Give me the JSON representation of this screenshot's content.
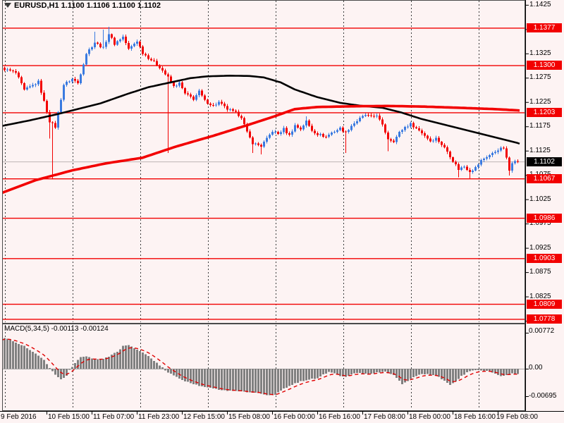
{
  "header": {
    "symbol_period": "EURUSD,H1",
    "ohlc_text": "1.1100 1.1106 1.1100 1.1102"
  },
  "colors": {
    "background": "#FDF3F3",
    "bull_candle": "#3A7AE0",
    "bear_candle": "#F20000",
    "ma_black": "#000000",
    "ma_red": "#F20000",
    "level_line": "#F20000",
    "bid_line": "#C4BCBC",
    "grid": "#3C3C3C",
    "macd_bar": "#808080",
    "macd_signal": "#E00000",
    "label_red_bg": "#F20000",
    "label_black_bg": "#000000",
    "frame": "#4a4a4a",
    "axis_line": "#000000"
  },
  "price_axis": {
    "tick_labels": [
      1.1425,
      1.1375,
      1.1325,
      1.1275,
      1.1225,
      1.1175,
      1.1125,
      1.1075,
      1.1025,
      1.0975,
      1.0925,
      1.0875,
      1.0825,
      1.0775
    ],
    "level_labels": [
      1.1377,
      1.13,
      1.1203,
      1.1067,
      1.0986,
      1.0903,
      1.0809,
      1.0778
    ],
    "current_price_label": 1.1102
  },
  "time_axis": {
    "labels": [
      "9 Feb 2016",
      "10 Feb 15:00",
      "11 Feb 07:00",
      "11 Feb 23:00",
      "12 Feb 15:00",
      "15 Feb 08:00",
      "16 Feb 00:00",
      "16 Feb 16:00",
      "17 Feb 08:00",
      "18 Feb 00:00",
      "18 Feb 16:00",
      "19 Feb 08:00"
    ]
  },
  "macd_panel": {
    "title": "MACD(5,34,5) -0.00113 -0.00124",
    "axis_labels": [
      "0.00772",
      "0.00",
      "-0.00695"
    ]
  },
  "chart_data": [
    {
      "type": "candlestick",
      "title": "EURUSD,H1",
      "bar_count": 184,
      "x_labels": [
        "9 Feb 2016",
        "10 Feb 15:00",
        "11 Feb 07:00",
        "11 Feb 23:00",
        "12 Feb 15:00",
        "15 Feb 08:00",
        "16 Feb 00:00",
        "16 Feb 16:00",
        "17 Feb 08:00",
        "18 Feb 00:00",
        "18 Feb 16:00",
        "19 Feb 08:00"
      ],
      "y_ticks": [
        1.1425,
        1.1375,
        1.1325,
        1.1275,
        1.1225,
        1.1175,
        1.1125,
        1.1075,
        1.1025,
        1.0975,
        1.0925,
        1.0875,
        1.0825,
        1.0775
      ],
      "ylim": [
        1.077,
        1.1435
      ],
      "horizontal_levels": [
        1.1377,
        1.13,
        1.1203,
        1.1067,
        1.0986,
        1.0903,
        1.0809,
        1.0778
      ],
      "current_price": 1.1102,
      "last_ohlc": [
        1.11,
        1.1106,
        1.11,
        1.1102
      ],
      "close_path_anchors": [
        [
          0,
          1.12943
        ],
        [
          5,
          1.12856
        ],
        [
          8,
          1.12493
        ],
        [
          13,
          1.12667
        ],
        [
          17,
          1.11855
        ],
        [
          19,
          1.11739
        ],
        [
          22,
          1.12609
        ],
        [
          25,
          1.12725
        ],
        [
          27,
          1.12638
        ],
        [
          30,
          1.13247
        ],
        [
          33,
          1.13479
        ],
        [
          36,
          1.13363
        ],
        [
          38,
          1.13653
        ],
        [
          40,
          1.1345
        ],
        [
          43,
          1.13595
        ],
        [
          45,
          1.13334
        ],
        [
          48,
          1.13508
        ],
        [
          50,
          1.13262
        ],
        [
          53,
          1.13117
        ],
        [
          56,
          1.12972
        ],
        [
          59,
          1.12754
        ],
        [
          61,
          1.12566
        ],
        [
          63,
          1.12638
        ],
        [
          65,
          1.12421
        ],
        [
          68,
          1.12319
        ],
        [
          70,
          1.12464
        ],
        [
          72,
          1.12276
        ],
        [
          75,
          1.12174
        ],
        [
          77,
          1.12247
        ],
        [
          80,
          1.12102
        ],
        [
          83,
          1.12029
        ],
        [
          85,
          1.11942
        ],
        [
          87,
          1.11623
        ],
        [
          89,
          1.11406
        ],
        [
          92,
          1.11348
        ],
        [
          94,
          1.11493
        ],
        [
          96,
          1.11652
        ],
        [
          98,
          1.11594
        ],
        [
          100,
          1.11696
        ],
        [
          102,
          1.11565
        ],
        [
          104,
          1.11768
        ],
        [
          106,
          1.11696
        ],
        [
          108,
          1.11855
        ],
        [
          110,
          1.11667
        ],
        [
          112,
          1.11594
        ],
        [
          115,
          1.11536
        ],
        [
          117,
          1.11623
        ],
        [
          120,
          1.1171
        ],
        [
          122,
          1.11623
        ],
        [
          124,
          1.11768
        ],
        [
          127,
          1.11913
        ],
        [
          129,
          1.11985
        ],
        [
          131,
          1.11942
        ],
        [
          133,
          1.11985
        ],
        [
          135,
          1.11768
        ],
        [
          137,
          1.11493
        ],
        [
          139,
          1.11449
        ],
        [
          141,
          1.11623
        ],
        [
          143,
          1.11739
        ],
        [
          145,
          1.11797
        ],
        [
          148,
          1.11667
        ],
        [
          150,
          1.11565
        ],
        [
          152,
          1.11449
        ],
        [
          154,
          1.11507
        ],
        [
          156,
          1.11377
        ],
        [
          158,
          1.11232
        ],
        [
          160,
          1.11043
        ],
        [
          162,
          1.10869
        ],
        [
          164,
          1.10927
        ],
        [
          166,
          1.10826
        ],
        [
          168,
          1.10898
        ],
        [
          170,
          1.11043
        ],
        [
          172,
          1.1113
        ],
        [
          174,
          1.11188
        ],
        [
          176,
          1.11275
        ],
        [
          178,
          1.11304
        ],
        [
          179,
          1.11087
        ],
        [
          180,
          1.1084
        ],
        [
          181,
          1.11014
        ],
        [
          182,
          1.11058
        ],
        [
          183,
          1.1102
        ]
      ],
      "special_wicks": [
        {
          "i": 17,
          "low": 1.115
        },
        {
          "i": 18,
          "low": 1.1066
        },
        {
          "i": 33,
          "high": 1.137
        },
        {
          "i": 36,
          "high": 1.1374
        },
        {
          "i": 38,
          "high": 1.138
        },
        {
          "i": 59,
          "low": 1.112
        },
        {
          "i": 89,
          "low": 1.112
        },
        {
          "i": 92,
          "low": 1.1117
        },
        {
          "i": 108,
          "high": 1.1196
        },
        {
          "i": 122,
          "low": 1.112
        },
        {
          "i": 137,
          "low": 1.1124
        },
        {
          "i": 162,
          "low": 1.107
        },
        {
          "i": 166,
          "low": 1.1068
        },
        {
          "i": 180,
          "low": 1.1074
        }
      ],
      "series": [
        {
          "name": "moving-average-black",
          "type": "line",
          "anchors": [
            [
              0,
              1.11756
            ],
            [
              10,
              1.11872
            ],
            [
              20,
              1.12003
            ],
            [
              26,
              1.1209
            ],
            [
              35,
              1.1222
            ],
            [
              45,
              1.12423
            ],
            [
              52,
              1.12554
            ],
            [
              60,
              1.12655
            ],
            [
              67,
              1.12742
            ],
            [
              73,
              1.12779
            ],
            [
              81,
              1.12793
            ],
            [
              88,
              1.12786
            ],
            [
              93,
              1.12757
            ],
            [
              99,
              1.12655
            ],
            [
              104,
              1.1251
            ],
            [
              112,
              1.12351
            ],
            [
              120,
              1.12235
            ],
            [
              127,
              1.12177
            ],
            [
              135,
              1.12133
            ],
            [
              142,
              1.12032
            ],
            [
              149,
              1.11901
            ],
            [
              160,
              1.11742
            ],
            [
              170,
              1.11597
            ],
            [
              177,
              1.11495
            ],
            [
              184,
              1.11394
            ]
          ]
        },
        {
          "name": "moving-average-red",
          "type": "line",
          "anchors": [
            [
              0,
              1.10379
            ],
            [
              12,
              1.1064
            ],
            [
              25,
              1.10843
            ],
            [
              37,
              1.10988
            ],
            [
              50,
              1.11104
            ],
            [
              62,
              1.11336
            ],
            [
              75,
              1.11554
            ],
            [
              87,
              1.11771
            ],
            [
              97,
              1.1196
            ],
            [
              104,
              1.12105
            ],
            [
              112,
              1.12148
            ],
            [
              125,
              1.12163
            ],
            [
              137,
              1.1217
            ],
            [
              150,
              1.12156
            ],
            [
              162,
              1.12133
            ],
            [
              175,
              1.12105
            ],
            [
              184,
              1.12076
            ]
          ]
        }
      ]
    },
    {
      "type": "bar",
      "title": "MACD(5,34,5)",
      "last_value": -0.00113,
      "last_signal": -0.00124,
      "ylim": [
        -0.00695,
        0.00772
      ],
      "zero_label": "0.00",
      "value_anchors": [
        [
          0,
          0.0067
        ],
        [
          4,
          0.0058
        ],
        [
          8,
          0.0047
        ],
        [
          12,
          0.0032
        ],
        [
          15,
          0.0018
        ],
        [
          17,
          0.0002
        ],
        [
          19,
          -0.0012
        ],
        [
          21,
          -0.0022
        ],
        [
          23,
          -0.0015
        ],
        [
          24,
          -0.0003
        ],
        [
          26,
          0.0012
        ],
        [
          28,
          0.0024
        ],
        [
          30,
          0.0026
        ],
        [
          32,
          0.0021
        ],
        [
          34,
          0.0019
        ],
        [
          36,
          0.0021
        ],
        [
          38,
          0.0026
        ],
        [
          40,
          0.0032
        ],
        [
          42,
          0.004
        ],
        [
          43,
          0.0047
        ],
        [
          45,
          0.0049
        ],
        [
          47,
          0.0042
        ],
        [
          49,
          0.0036
        ],
        [
          51,
          0.003
        ],
        [
          53,
          0.0022
        ],
        [
          55,
          0.0012
        ],
        [
          57,
          0.0002
        ],
        [
          59,
          -0.0008
        ],
        [
          62,
          -0.0018
        ],
        [
          65,
          -0.0026
        ],
        [
          68,
          -0.0032
        ],
        [
          72,
          -0.0038
        ],
        [
          76,
          -0.0043
        ],
        [
          80,
          -0.0046
        ],
        [
          84,
          -0.0047
        ],
        [
          88,
          -0.0049
        ],
        [
          92,
          -0.0052
        ],
        [
          95,
          -0.0056
        ],
        [
          97,
          -0.0054
        ],
        [
          100,
          -0.0042
        ],
        [
          103,
          -0.0033
        ],
        [
          106,
          -0.0026
        ],
        [
          109,
          -0.0022
        ],
        [
          112,
          -0.002
        ],
        [
          114,
          -0.0013
        ],
        [
          116,
          -0.0006
        ],
        [
          118,
          -0.001
        ],
        [
          120,
          -0.0015
        ],
        [
          122,
          -0.0018
        ],
        [
          124,
          -0.0011
        ],
        [
          127,
          -0.0008
        ],
        [
          130,
          -0.0013
        ],
        [
          133,
          -0.0008
        ],
        [
          136,
          -0.0007
        ],
        [
          139,
          -0.0014
        ],
        [
          141,
          -0.0025
        ],
        [
          142,
          -0.0033
        ],
        [
          144,
          -0.0026
        ],
        [
          146,
          -0.0018
        ],
        [
          149,
          -0.0011
        ],
        [
          152,
          -0.0012
        ],
        [
          155,
          -0.0018
        ],
        [
          157,
          -0.0026
        ],
        [
          159,
          -0.0033
        ],
        [
          161,
          -0.0027
        ],
        [
          163,
          -0.0016
        ],
        [
          165,
          -0.0007
        ],
        [
          167,
          -0.0003
        ],
        [
          170,
          -0.0004
        ],
        [
          173,
          -0.0006
        ],
        [
          175,
          -0.0011
        ],
        [
          177,
          -0.0016
        ],
        [
          179,
          -0.0013
        ],
        [
          181,
          -0.001
        ],
        [
          183,
          -0.00113
        ]
      ]
    }
  ]
}
